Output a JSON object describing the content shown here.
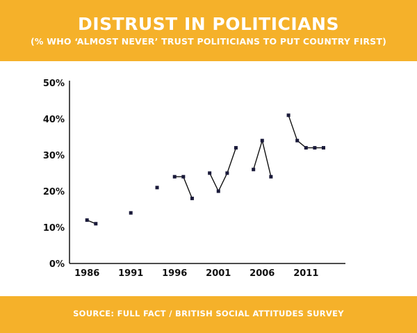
{
  "header": {
    "title": "DISTRUST IN POLITICIANS",
    "subtitle": "(% WHO ‘ALMOST NEVER’ TRUST POLITICIANS TO PUT COUNTRY FIRST)"
  },
  "footer": {
    "source": "SOURCE: FULL FACT / BRITISH SOCIAL ATTITUDES SURVEY"
  },
  "colors": {
    "band": "#f5b12a",
    "ink": "#111111"
  },
  "chart_data": {
    "type": "line",
    "title": "DISTRUST IN POLITICIANS",
    "subtitle": "(% WHO ‘ALMOST NEVER’ TRUST POLITICIANS TO PUT COUNTRY FIRST)",
    "xlabel": "",
    "ylabel": "",
    "xlim": [
      1984,
      2015.5
    ],
    "ylim": [
      0,
      50
    ],
    "x_ticks": [
      1986,
      1991,
      1996,
      2001,
      2006,
      2011
    ],
    "x_tick_labels": [
      "1986",
      "1991",
      "1996",
      "2001",
      "2006",
      "2011"
    ],
    "y_ticks": [
      0,
      10,
      20,
      30,
      40,
      50
    ],
    "y_tick_labels": [
      "0%",
      "10%",
      "20%",
      "30%",
      "40%",
      "50%"
    ],
    "grid": false,
    "segments": [
      [
        [
          1986,
          12
        ],
        [
          1987,
          11
        ]
      ],
      [
        [
          1991,
          14
        ]
      ],
      [
        [
          1994,
          21
        ]
      ],
      [
        [
          1996,
          24
        ],
        [
          1997,
          24
        ],
        [
          1998,
          18
        ]
      ],
      [
        [
          2000,
          25
        ],
        [
          2001,
          20
        ],
        [
          2002,
          25
        ],
        [
          2003,
          32
        ]
      ],
      [
        [
          2005,
          26
        ],
        [
          2006,
          34
        ],
        [
          2007,
          24
        ]
      ],
      [
        [
          2009,
          41
        ],
        [
          2010,
          34
        ],
        [
          2011,
          32
        ],
        [
          2012,
          32
        ],
        [
          2013,
          32
        ]
      ]
    ]
  }
}
